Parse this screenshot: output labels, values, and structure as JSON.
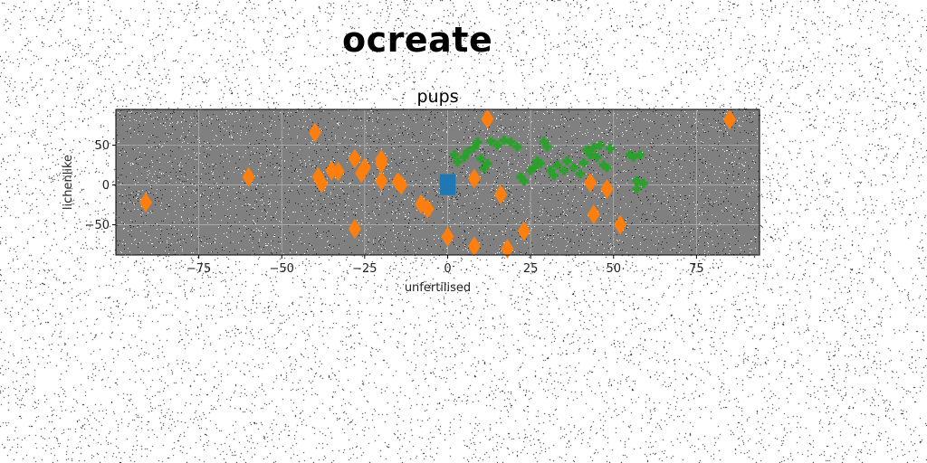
{
  "suptitle": "ocreate",
  "chart_data": {
    "type": "scatter",
    "title": "pups",
    "xlabel": "unfertilised",
    "ylabel": "lichenlike",
    "xlim": [
      -100,
      94
    ],
    "ylim": [
      -88,
      95
    ],
    "xticks": [
      -75,
      -50,
      -25,
      0,
      25,
      50,
      75
    ],
    "yticks": [
      -50,
      0,
      50
    ],
    "grid": true,
    "background_color": "#808080",
    "series": [
      {
        "marker": "square",
        "color": "#1f77b4",
        "points": [
          [
            -1,
            8
          ],
          [
            1,
            8
          ],
          [
            -1,
            3
          ],
          [
            1,
            3
          ],
          [
            -1,
            -2
          ],
          [
            1,
            -2
          ],
          [
            -1,
            -7
          ],
          [
            1,
            -7
          ]
        ]
      },
      {
        "marker": "diamond",
        "color": "#ff7f0e",
        "points": [
          [
            -91,
            -22
          ],
          [
            -60,
            10
          ],
          [
            -40,
            66
          ],
          [
            -39,
            10
          ],
          [
            -38,
            2
          ],
          [
            -35,
            18
          ],
          [
            -33,
            17
          ],
          [
            -28,
            33
          ],
          [
            -28,
            -55
          ],
          [
            -26,
            15
          ],
          [
            -25,
            22
          ],
          [
            -20,
            32
          ],
          [
            -20,
            27
          ],
          [
            -20,
            5
          ],
          [
            -15,
            4
          ],
          [
            -14,
            0
          ],
          [
            -8,
            -24
          ],
          [
            -6,
            -30
          ],
          [
            0,
            -65
          ],
          [
            8,
            -77
          ],
          [
            8,
            8
          ],
          [
            12,
            83
          ],
          [
            16,
            -12
          ],
          [
            18,
            -80
          ],
          [
            23,
            -58
          ],
          [
            43,
            3
          ],
          [
            44,
            -37
          ],
          [
            48,
            -5
          ],
          [
            52,
            -50
          ],
          [
            85,
            82
          ]
        ]
      },
      {
        "marker": "plus",
        "color": "#2ca02c",
        "points": [
          [
            2,
            38
          ],
          [
            3,
            29
          ],
          [
            5,
            35
          ],
          [
            6,
            42
          ],
          [
            8,
            47
          ],
          [
            9,
            54
          ],
          [
            10,
            33
          ],
          [
            11,
            21
          ],
          [
            12,
            27
          ],
          [
            13,
            55
          ],
          [
            15,
            50
          ],
          [
            17,
            56
          ],
          [
            19,
            54
          ],
          [
            21,
            48
          ],
          [
            22,
            10
          ],
          [
            23,
            5
          ],
          [
            25,
            18
          ],
          [
            26,
            22
          ],
          [
            27,
            30
          ],
          [
            28,
            27
          ],
          [
            29,
            55
          ],
          [
            30,
            48
          ],
          [
            31,
            18
          ],
          [
            32,
            12
          ],
          [
            33,
            25
          ],
          [
            35,
            18
          ],
          [
            36,
            30
          ],
          [
            38,
            22
          ],
          [
            40,
            14
          ],
          [
            41,
            28
          ],
          [
            42,
            44
          ],
          [
            43,
            38
          ],
          [
            44,
            47
          ],
          [
            45,
            35
          ],
          [
            46,
            50
          ],
          [
            47,
            25
          ],
          [
            48,
            22
          ],
          [
            49,
            46
          ],
          [
            55,
            38
          ],
          [
            56,
            35
          ],
          [
            57,
            5
          ],
          [
            57,
            -5
          ],
          [
            58,
            38
          ],
          [
            59,
            2
          ]
        ]
      }
    ]
  }
}
